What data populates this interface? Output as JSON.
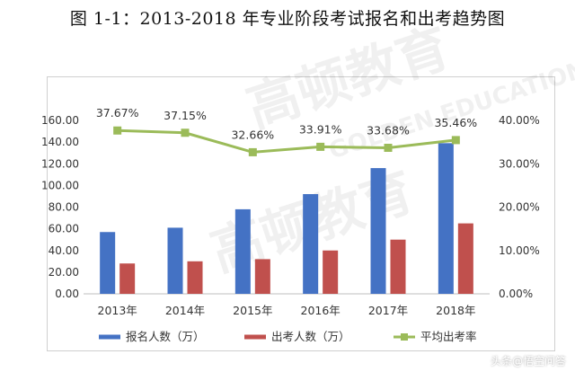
{
  "title": "图 1-1：2013-2018 年专业阶段考试报名和出考趋势图",
  "watermark": {
    "brand": "高顿教育",
    "brand_en": "GOLDEN EDUCATION",
    "platform": "头条@悟空问答"
  },
  "colors": {
    "bar_reg": "#4472C4",
    "bar_exam": "#C0504D",
    "line": "#9BBB59",
    "axis": "#d0d0d0",
    "grid": "#d9d9d9",
    "text": "#333333"
  },
  "chart_data": {
    "type": "bar",
    "categories": [
      "2013年",
      "2014年",
      "2015年",
      "2016年",
      "2017年",
      "2018年"
    ],
    "series": [
      {
        "name": "报名人数（万）",
        "type": "bar",
        "axis": "left",
        "values": [
          57,
          61,
          78,
          92,
          116,
          139
        ]
      },
      {
        "name": "出考人数（万）",
        "type": "bar",
        "axis": "left",
        "values": [
          28,
          30,
          32,
          40,
          50,
          65
        ]
      },
      {
        "name": "平均出考率",
        "type": "line",
        "axis": "right",
        "values": [
          37.67,
          37.15,
          32.66,
          33.91,
          33.68,
          35.46
        ],
        "labels": [
          "37.67%",
          "37.15%",
          "32.66%",
          "33.91%",
          "33.68%",
          "35.46%"
        ]
      }
    ],
    "y_left": {
      "ylim": [
        0,
        160
      ],
      "ticks": [
        "0.00",
        "20.00",
        "40.00",
        "60.00",
        "80.00",
        "100.00",
        "120.00",
        "140.00",
        "160.00"
      ]
    },
    "y_right": {
      "ylim": [
        0,
        40
      ],
      "ticks": [
        "0.00%",
        "10.00%",
        "20.00%",
        "30.00%",
        "40.00%"
      ]
    },
    "legend": "bottom",
    "grid": false
  }
}
